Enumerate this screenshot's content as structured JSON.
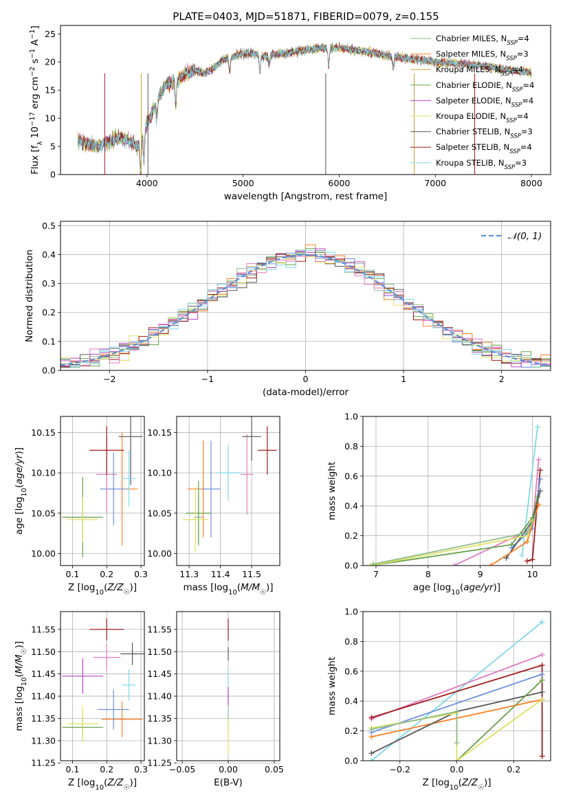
{
  "title": "PLATE=0403, MJD=51871, FIBERID=0079, z=0.155",
  "colors": [
    "#8dbb8d",
    "#ff9f40",
    "#c8a030",
    "#67a04a",
    "#b040c0",
    "#dfe060",
    "#555555",
    "#a01818",
    "#8fe0f0"
  ],
  "chart_data": [
    {
      "id": "spectrum",
      "type": "line",
      "xlabel": "wavelength [Angstrom, rest frame]",
      "ylabel": "Flux [f_λ 10^-17 erg cm^-2 s^-1 A^-1]",
      "xlim": [
        3100,
        8200
      ],
      "ylim": [
        0,
        26.5
      ],
      "xticks": [
        4000,
        5000,
        6000,
        7000,
        8000
      ],
      "yticks": [
        0,
        5,
        10,
        15,
        20,
        25
      ],
      "grid": false,
      "legend_position": "top-right",
      "shape_knots": {
        "x": [
          3300,
          3400,
          3500,
          3600,
          3700,
          3800,
          3900,
          4000,
          4100,
          4200,
          4300,
          4400,
          4500,
          4600,
          4700,
          4800,
          4900,
          5000,
          5100,
          5200,
          5400,
          5600,
          5800,
          6000,
          6200,
          6400,
          6600,
          6800,
          7000,
          7200,
          7400,
          7600,
          7800,
          8000
        ],
        "y": [
          6.0,
          5.2,
          5.0,
          5.8,
          6.5,
          6.2,
          5.0,
          9.0,
          13.0,
          16.0,
          16.5,
          18.0,
          18.5,
          18.0,
          19.0,
          20.5,
          21.0,
          21.5,
          21.5,
          21.0,
          21.5,
          22.0,
          22.5,
          22.5,
          22.0,
          21.5,
          20.8,
          20.5,
          20.0,
          19.8,
          19.5,
          19.0,
          18.5,
          18.2
        ]
      },
      "series": [
        {
          "name": "Chabrier MILES",
          "n_ssp": "4"
        },
        {
          "name": "Salpeter MILES",
          "n_ssp": "3"
        },
        {
          "name": "Kroupa MILES",
          "n_ssp": "4"
        },
        {
          "name": "Chabrier ELODIE",
          "n_ssp": "4"
        },
        {
          "name": "Salpeter ELODIE",
          "n_ssp": "4"
        },
        {
          "name": "Kroupa ELODIE",
          "n_ssp": "4"
        },
        {
          "name": "Chabrier STELIB",
          "n_ssp": "3"
        },
        {
          "name": "Salpeter STELIB",
          "n_ssp": "4"
        },
        {
          "name": "Kroupa STELIB",
          "n_ssp": "3"
        }
      ]
    },
    {
      "id": "residuals",
      "type": "histogram",
      "xlabel": "(data-model)/error",
      "ylabel": "Normed distribution",
      "xlim": [
        -2.5,
        2.5
      ],
      "ylim": [
        0,
        0.515
      ],
      "xticks": [
        -2,
        -1,
        0,
        1,
        2
      ],
      "yticks": [
        0.0,
        0.1,
        0.2,
        0.3,
        0.4,
        0.5
      ],
      "grid": true,
      "legend_position": "top-right",
      "legend_label": "𝒩(0, 1)",
      "bin_width": 0.1
    },
    {
      "id": "age-vs-Z",
      "type": "errorbar",
      "xlabel": "Z [log10(Z/Z☉)]",
      "ylabel": "age  [log10(age/yr)]",
      "xlim": [
        0.065,
        0.31
      ],
      "ylim": [
        9.985,
        10.17
      ],
      "xticks": [
        0.1,
        0.2,
        0.3
      ],
      "yticks": [
        10.0,
        10.05,
        10.1,
        10.15
      ],
      "grid": true,
      "points": [
        {
          "x": 0.13,
          "xerr": 0.045,
          "y": 10.045,
          "yerr": 0.02,
          "color": "#8dbb8d"
        },
        {
          "x": 0.245,
          "xerr": 0.045,
          "y": 10.08,
          "yerr": 0.07,
          "color": "#ff7f20"
        },
        {
          "x": 0.22,
          "xerr": 0.04,
          "y": 10.08,
          "yerr": 0.045,
          "color": "#6a8fe0"
        },
        {
          "x": 0.13,
          "xerr": 0.06,
          "y": 10.045,
          "yerr": 0.05,
          "color": "#67a04a"
        },
        {
          "x": 0.2,
          "xerr": 0.03,
          "y": 10.098,
          "yerr": 0.048,
          "color": "#e07bc0"
        },
        {
          "x": 0.13,
          "xerr": 0.045,
          "y": 10.042,
          "yerr": 0.028,
          "color": "#dfe060"
        },
        {
          "x": 0.27,
          "xerr": 0.035,
          "y": 10.145,
          "yerr": 0.06,
          "color": "#555555"
        },
        {
          "x": 0.2,
          "xerr": 0.05,
          "y": 10.128,
          "yerr": 0.03,
          "color": "#a01818"
        },
        {
          "x": 0.265,
          "xerr": 0.02,
          "y": 10.093,
          "yerr": 0.035,
          "color": "#7fd8e8"
        }
      ]
    },
    {
      "id": "age-vs-mass",
      "type": "errorbar",
      "xlabel": "mass [log10(M/M☉)]",
      "ylabel": "",
      "xlim": [
        11.26,
        11.59
      ],
      "ylim": [
        9.985,
        10.17
      ],
      "xticks": [
        11.3,
        11.4,
        11.5
      ],
      "yticks": [
        10.0,
        10.05,
        10.1,
        10.15
      ],
      "grid": true,
      "points": [
        {
          "x": 11.33,
          "xerr": 0.015,
          "y": 10.045,
          "yerr": 0.03,
          "color": "#8dbb8d"
        },
        {
          "x": 11.345,
          "xerr": 0.05,
          "y": 10.08,
          "yerr": 0.06,
          "color": "#ff7f20"
        },
        {
          "x": 11.37,
          "xerr": 0.03,
          "y": 10.08,
          "yerr": 0.06,
          "color": "#6a8fe0"
        },
        {
          "x": 11.33,
          "xerr": 0.04,
          "y": 10.05,
          "yerr": 0.04,
          "color": "#67a04a"
        },
        {
          "x": 11.485,
          "xerr": 0.02,
          "y": 10.098,
          "yerr": 0.05,
          "color": "#e07bc0"
        },
        {
          "x": 11.32,
          "xerr": 0.04,
          "y": 10.042,
          "yerr": 0.04,
          "color": "#dfe060"
        },
        {
          "x": 11.5,
          "xerr": 0.03,
          "y": 10.145,
          "yerr": 0.03,
          "color": "#555555"
        },
        {
          "x": 11.55,
          "xerr": 0.03,
          "y": 10.128,
          "yerr": 0.03,
          "color": "#a01818"
        },
        {
          "x": 11.425,
          "xerr": 0.04,
          "y": 10.1,
          "yerr": 0.035,
          "color": "#7fd8e8"
        }
      ]
    },
    {
      "id": "mass-weight-vs-age",
      "type": "line",
      "xlabel": "age  [log10(age/yr)]",
      "ylabel": "mass weight",
      "xlim": [
        6.75,
        10.35
      ],
      "ylim": [
        0,
        1.0
      ],
      "xticks": [
        7,
        8,
        9,
        10
      ],
      "yticks": [
        0.0,
        0.2,
        0.4,
        0.6,
        0.8,
        1.0
      ],
      "grid": true,
      "series": [
        {
          "color": "#7fd8e8",
          "x": [
            9.8,
            10.1
          ],
          "y": [
            0.07,
            0.93
          ]
        },
        {
          "color": "#e07bc0",
          "x": [
            8.5,
            10.0,
            10.12
          ],
          "y": [
            0.0,
            0.25,
            0.71
          ]
        },
        {
          "color": "#a01818",
          "x": [
            9.9,
            10.0,
            10.15
          ],
          "y": [
            0.03,
            0.04,
            0.64
          ]
        },
        {
          "color": "#6a8fe0",
          "x": [
            9.6,
            10.0,
            10.15
          ],
          "y": [
            0.12,
            0.25,
            0.58
          ]
        },
        {
          "color": "#67a04a",
          "x": [
            6.9,
            9.6,
            10.0,
            10.1
          ],
          "y": [
            0.0,
            0.14,
            0.32,
            0.46
          ]
        },
        {
          "color": "#555555",
          "x": [
            9.5,
            10.0,
            10.15
          ],
          "y": [
            0.05,
            0.3,
            0.5
          ]
        },
        {
          "color": "#ff7f20",
          "x": [
            9.2,
            9.9,
            10.12
          ],
          "y": [
            0.0,
            0.16,
            0.41
          ]
        },
        {
          "color": "#dfe060",
          "x": [
            6.9,
            9.9,
            10.0
          ],
          "y": [
            0.0,
            0.2,
            0.3
          ]
        },
        {
          "color": "#8dbb8d",
          "x": [
            6.95,
            9.9,
            10.05
          ],
          "y": [
            0.01,
            0.22,
            0.33
          ]
        }
      ]
    },
    {
      "id": "mass-vs-Z",
      "type": "errorbar",
      "xlabel": "Z [log10(Z/Z☉)]",
      "ylabel": "mass [log10(M/M☉)]",
      "xlim": [
        0.065,
        0.31
      ],
      "ylim": [
        11.255,
        11.59
      ],
      "xticks": [
        0.1,
        0.2,
        0.3
      ],
      "yticks": [
        11.25,
        11.3,
        11.35,
        11.4,
        11.45,
        11.5,
        11.55
      ],
      "grid": true,
      "points": [
        {
          "x": 0.13,
          "xerr": 0.045,
          "y": 11.33,
          "yerr": 0.02,
          "color": "#8dbb8d"
        },
        {
          "x": 0.245,
          "xerr": 0.06,
          "y": 11.348,
          "yerr": 0.04,
          "color": "#ff7f20"
        },
        {
          "x": 0.22,
          "xerr": 0.045,
          "y": 11.37,
          "yerr": 0.045,
          "color": "#6a8fe0"
        },
        {
          "x": 0.13,
          "xerr": 0.06,
          "y": 11.33,
          "yerr": 0.03,
          "color": "#67a04a"
        },
        {
          "x": 0.13,
          "xerr": 0.06,
          "y": 11.445,
          "yerr": 0.04,
          "color": "#b040c0"
        },
        {
          "x": 0.2,
          "xerr": 0.04,
          "y": 11.487,
          "yerr": 0.03,
          "color": "#e07bc0"
        },
        {
          "x": 0.13,
          "xerr": 0.045,
          "y": 11.338,
          "yerr": 0.04,
          "color": "#dfe060"
        },
        {
          "x": 0.275,
          "xerr": 0.035,
          "y": 11.495,
          "yerr": 0.025,
          "color": "#555555"
        },
        {
          "x": 0.2,
          "xerr": 0.05,
          "y": 11.55,
          "yerr": 0.025,
          "color": "#a01818"
        },
        {
          "x": 0.265,
          "xerr": 0.02,
          "y": 11.425,
          "yerr": 0.035,
          "color": "#7fd8e8"
        }
      ]
    },
    {
      "id": "mass-vs-ebv",
      "type": "errorbar",
      "xlabel": "E(B-V)",
      "ylabel": "",
      "xlim": [
        -0.056,
        0.056
      ],
      "ylim": [
        11.255,
        11.59
      ],
      "xticks": [
        -0.05,
        0.0,
        0.05
      ],
      "yticks": [
        11.25,
        11.3,
        11.35,
        11.4,
        11.45,
        11.5,
        11.55
      ],
      "grid": true,
      "points": [
        {
          "x": 0.0,
          "xerr": 0,
          "y": 11.55,
          "yerr": 0.025,
          "color": "#a01818"
        },
        {
          "x": 0.0,
          "xerr": 0,
          "y": 11.495,
          "yerr": 0.015,
          "color": "#555555"
        },
        {
          "x": 0.0,
          "xerr": 0,
          "y": 11.425,
          "yerr": 0.035,
          "color": "#7fd8e8"
        },
        {
          "x": 0.0,
          "xerr": 0,
          "y": 11.4,
          "yerr": 0.02,
          "color": "#b040c0"
        },
        {
          "x": 0.0,
          "xerr": 0,
          "y": 11.35,
          "yerr": 0.03,
          "color": "#8dbb8d"
        },
        {
          "x": 0.0,
          "xerr": 0,
          "y": 11.31,
          "yerr": 0.04,
          "color": "#dfe060"
        }
      ]
    },
    {
      "id": "mass-weight-vs-Z",
      "type": "line",
      "xlabel": "Z [log10(Z/Z☉)]",
      "ylabel": "mass weight",
      "xlim": [
        -0.33,
        0.33
      ],
      "ylim": [
        0,
        1.0
      ],
      "xticks": [
        -0.2,
        0.0,
        0.2
      ],
      "yticks": [
        0.0,
        0.2,
        0.4,
        0.6,
        0.8,
        1.0
      ],
      "grid": true,
      "series": [
        {
          "color": "#7fd8e8",
          "x": [
            -0.3,
            0.3
          ],
          "y": [
            0.0,
            0.93
          ]
        },
        {
          "color": "#e07bc0",
          "x": [
            -0.3,
            0.3
          ],
          "y": [
            0.28,
            0.71
          ]
        },
        {
          "color": "#a01818",
          "x": [
            -0.3,
            0.3,
            0.3
          ],
          "y": [
            0.29,
            0.64,
            0.03
          ]
        },
        {
          "color": "#6a8fe0",
          "x": [
            -0.3,
            0.3
          ],
          "y": [
            0.19,
            0.58
          ]
        },
        {
          "color": "#ff7f20",
          "x": [
            -0.3,
            0.3
          ],
          "y": [
            0.16,
            0.41
          ]
        },
        {
          "color": "#555555",
          "x": [
            -0.3,
            0.0,
            0.3
          ],
          "y": [
            0.05,
            0.33,
            0.46
          ]
        },
        {
          "color": "#67a04a",
          "x": [
            0.0,
            0.3
          ],
          "y": [
            0.0,
            0.54
          ]
        },
        {
          "color": "#dfe060",
          "x": [
            -0.3,
            0.0,
            0.0,
            0.3
          ],
          "y": [
            0.22,
            0.32,
            0.0,
            0.41
          ]
        },
        {
          "color": "#8dbb8d",
          "x": [
            -0.3,
            0.0,
            0.0
          ],
          "y": [
            0.21,
            0.33,
            0.12
          ]
        }
      ]
    }
  ]
}
